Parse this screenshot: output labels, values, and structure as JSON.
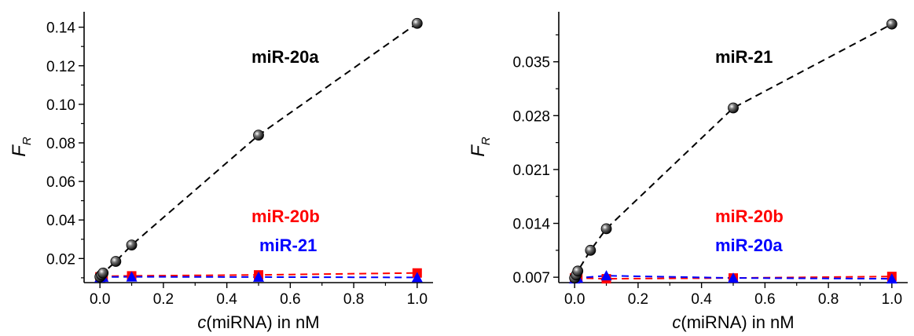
{
  "chart_data": [
    {
      "type": "scatter",
      "title": "",
      "xlabel": {
        "italic": "c",
        "rest": "(miRNA) in nM"
      },
      "ylabel": {
        "main": "F",
        "sub": "R"
      },
      "xlim": [
        -0.05,
        1.05
      ],
      "ylim": [
        0.0075,
        0.148
      ],
      "xticks": [
        0.0,
        0.2,
        0.4,
        0.6,
        0.8,
        1.0
      ],
      "xtick_labels": [
        "0.0",
        "0.2",
        "0.4",
        "0.6",
        "0.8",
        "1.0"
      ],
      "yticks": [
        0.02,
        0.04,
        0.06,
        0.08,
        0.1,
        0.12,
        0.14
      ],
      "ytick_labels": [
        "0.02",
        "0.04",
        "0.06",
        "0.08",
        "0.10",
        "0.12",
        "0.14"
      ],
      "grid": false,
      "annotations": [
        {
          "text": "miR-20a",
          "color": "#000000"
        },
        {
          "text": "miR-20b",
          "color": "#ff0000"
        },
        {
          "text": "miR-21",
          "color": "#0000ff"
        }
      ],
      "series": [
        {
          "color": "#000000",
          "marker": "sphere",
          "x": [
            0,
            0.005,
            0.01,
            0.05,
            0.1,
            0.5,
            1.0
          ],
          "y": [
            0.0105,
            0.0115,
            0.0125,
            0.0185,
            0.027,
            0.084,
            0.142
          ]
        },
        {
          "color": "#ff0000",
          "marker": "square",
          "x": [
            0,
            0.01,
            0.1,
            0.5,
            1.0
          ],
          "y": [
            0.0105,
            0.0108,
            0.011,
            0.0115,
            0.0125
          ]
        },
        {
          "color": "#0000ff",
          "marker": "triangle",
          "x": [
            0,
            0.01,
            0.1,
            0.5,
            1.0
          ],
          "y": [
            0.0102,
            0.0104,
            0.0105,
            0.0104,
            0.0102
          ]
        }
      ]
    },
    {
      "type": "scatter",
      "title": "",
      "xlabel": {
        "italic": "c",
        "rest": "(miRNA) in nM"
      },
      "ylabel": {
        "main": "F",
        "sub": "R"
      },
      "xlim": [
        -0.05,
        1.05
      ],
      "ylim": [
        0.0063,
        0.0415
      ],
      "xticks": [
        0.0,
        0.2,
        0.4,
        0.6,
        0.8,
        1.0
      ],
      "xtick_labels": [
        "0.0",
        "0.2",
        "0.4",
        "0.6",
        "0.8",
        "1.0"
      ],
      "yticks": [
        0.007,
        0.014,
        0.021,
        0.028,
        0.035
      ],
      "ytick_labels": [
        "0.007",
        "0.014",
        "0.021",
        "0.028",
        "0.035"
      ],
      "grid": false,
      "annotations": [
        {
          "text": "miR-21",
          "color": "#000000"
        },
        {
          "text": "miR-20b",
          "color": "#ff0000"
        },
        {
          "text": "miR-20a",
          "color": "#0000ff"
        }
      ],
      "series": [
        {
          "color": "#000000",
          "marker": "sphere",
          "x": [
            0,
            0.005,
            0.01,
            0.05,
            0.1,
            0.5,
            1.0
          ],
          "y": [
            0.0069,
            0.0073,
            0.0078,
            0.0105,
            0.0133,
            0.029,
            0.0399
          ]
        },
        {
          "color": "#ff0000",
          "marker": "square",
          "x": [
            0,
            0.01,
            0.1,
            0.5,
            1.0
          ],
          "y": [
            0.0069,
            0.0069,
            0.0068,
            0.0069,
            0.0071
          ]
        },
        {
          "color": "#0000ff",
          "marker": "triangle",
          "x": [
            0,
            0.01,
            0.1,
            0.5,
            1.0
          ],
          "y": [
            0.0068,
            0.0069,
            0.0072,
            0.0069,
            0.0068
          ]
        }
      ]
    }
  ]
}
